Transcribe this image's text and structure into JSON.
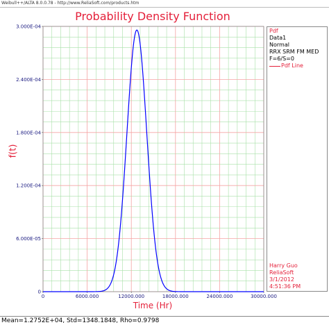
{
  "window": {
    "title": "Weibull++/ALTA 8.0.0.78 - http://www.ReliaSoft.com/products.htm"
  },
  "legend": {
    "header": "Pdf",
    "lines": [
      "Data1",
      "Normal",
      "RRX SRM FM MED",
      "F=6/S=0"
    ],
    "series_label": "Pdf Line",
    "footer": [
      "Harry Guo",
      "ReliaSoft",
      "3/1/2012",
      "4:51:36 PM"
    ]
  },
  "status": {
    "text": "Mean=1.2752E+04, Std=1348.1848, Rho=0.9798"
  },
  "colors": {
    "title": "#e4203a",
    "curve": "#0000ff",
    "grid_major": "#f5a3a3",
    "grid_minor": "#a8e0a8"
  },
  "chart_data": {
    "type": "line",
    "title": "Probability Density Function",
    "xlabel": "Time (Hr)",
    "ylabel": "f(t)",
    "xlim": [
      0,
      30000
    ],
    "ylim": [
      0,
      0.0003
    ],
    "x_ticks": [
      "0",
      "6000.000",
      "12000.000",
      "18000.000",
      "24000.000",
      "30000.000"
    ],
    "y_ticks": [
      "0",
      "6.000E-05",
      "1.200E-04",
      "1.800E-04",
      "2.400E-04",
      "3.000E-04"
    ],
    "grid": true,
    "legend_position": "right",
    "series": [
      {
        "name": "Pdf Line",
        "distribution": "normal",
        "mean": 12752,
        "std": 1348.1848
      }
    ]
  }
}
